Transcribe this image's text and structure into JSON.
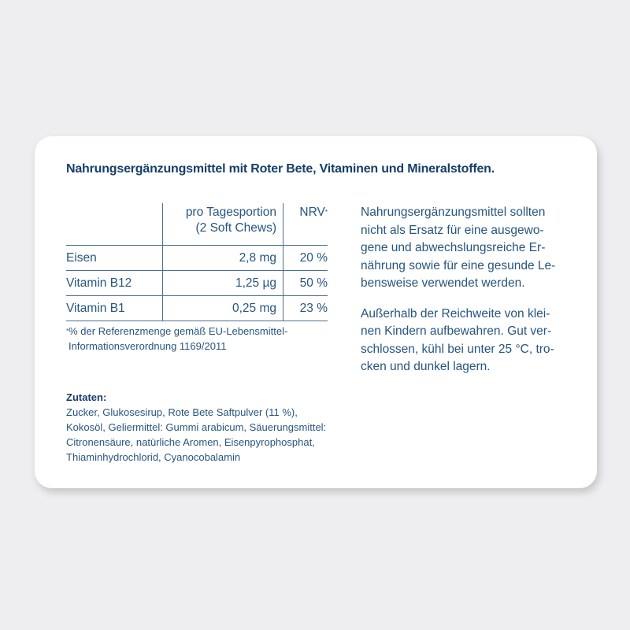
{
  "title": "Nahrungsergänzungsmittel mit Roter Bete, Vitaminen und Mineralstoffen.",
  "table": {
    "header": {
      "col2_line1": "pro Tagesportion",
      "col2_line2": "(2 Soft Chews)",
      "col3": "NRV",
      "col3_mark": "*"
    },
    "rows": [
      {
        "name": "Eisen",
        "amount": "2,8 mg",
        "nrv": "20 %"
      },
      {
        "name": "Vitamin B12",
        "amount": "1,25 µg",
        "nrv": "50 %"
      },
      {
        "name": "Vitamin B1",
        "amount": "0,25 mg",
        "nrv": "23 %"
      }
    ]
  },
  "footnote": {
    "mark": "*",
    "lines": [
      "% der Referenzmenge gemäß EU-Lebensmittel-",
      "Informationsverordnung 1169/2011"
    ]
  },
  "ingredients": {
    "heading": "Zutaten:",
    "lines": [
      "Zucker, Glukosesirup, Rote Bete Saftpulver (11 %),",
      "Kokosöl, Geliermittel: Gummi arabicum, Säuerungsmittel:",
      "Citronensäure, natürliche Aromen, Eisenpyrophosphat,",
      "Thiaminhydrochlorid, Cyanocobalamin"
    ]
  },
  "notes": [
    {
      "lines": [
        "Nahrungsergänzungsmittel sollten",
        "nicht als Ersatz für eine ausgewo-",
        "gene und abwechslungsreiche Er-",
        "nährung sowie für eine gesunde Le-",
        "bensweise verwendet werden."
      ]
    },
    {
      "lines": [
        "Außerhalb der Reichweite von klei-",
        "nen Kindern aufbewahren. Gut ver-",
        "schlossen, kühl bei unter 25 °C, tro-",
        "cken und dunkel lagern."
      ]
    }
  ]
}
